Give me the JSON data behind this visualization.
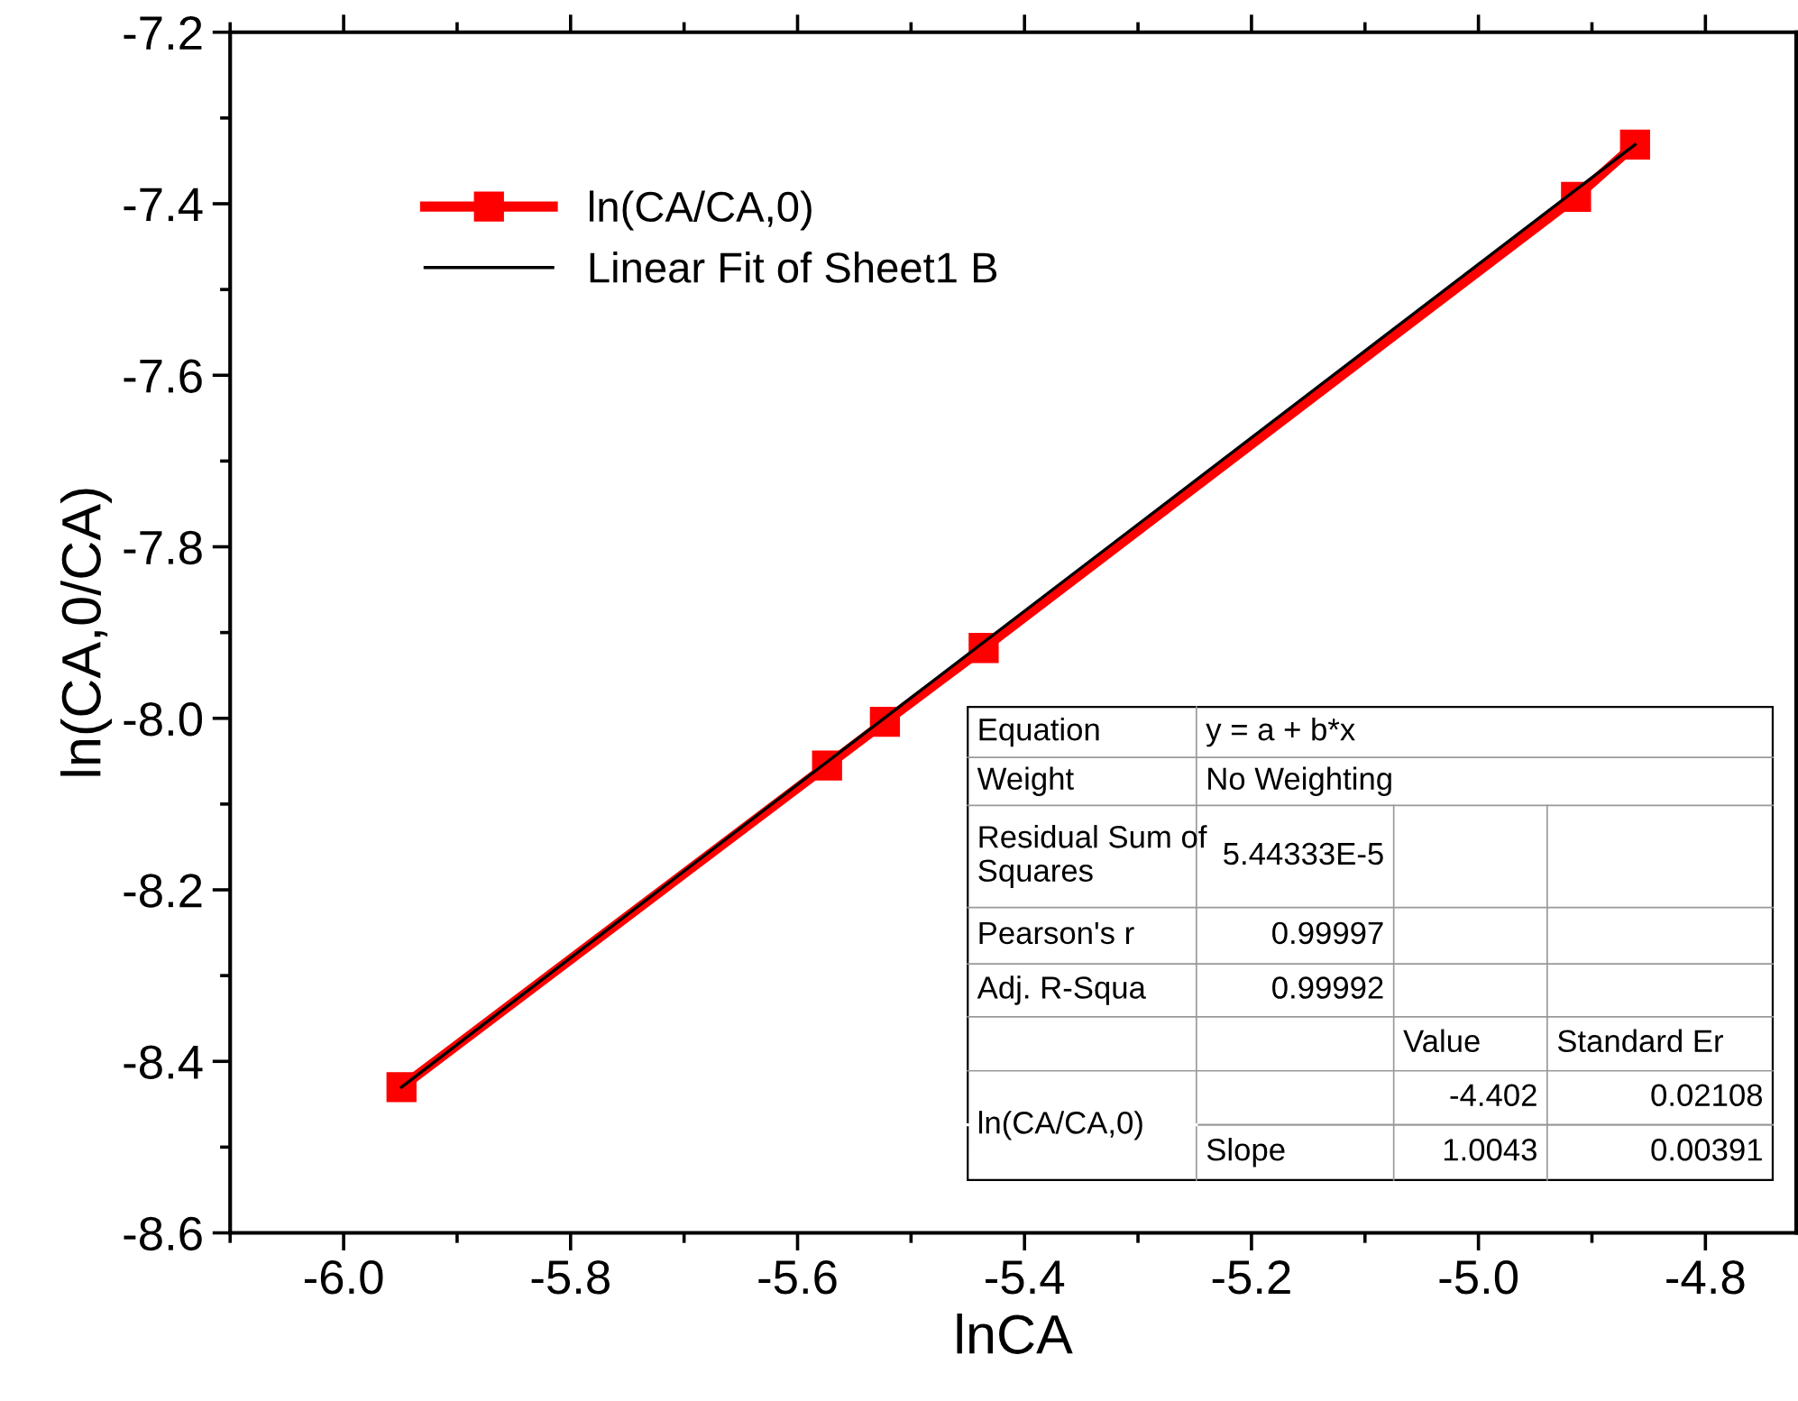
{
  "chart_data": {
    "type": "line",
    "xlabel": "lnCA",
    "ylabel": "ln(CA,0/CA)",
    "xlim": [
      -6.1,
      -4.72
    ],
    "ylim": [
      -8.6,
      -7.2
    ],
    "xticks": [
      {
        "value": -6.0,
        "label": "-6.0"
      },
      {
        "value": -5.8,
        "label": "-5.8"
      },
      {
        "value": -5.6,
        "label": "-5.6"
      },
      {
        "value": -5.4,
        "label": "-5.4"
      },
      {
        "value": -5.2,
        "label": "-5.2"
      },
      {
        "value": -5.0,
        "label": "-5.0"
      },
      {
        "value": -4.8,
        "label": "-4.8"
      }
    ],
    "yticks": [
      {
        "value": -8.6,
        "label": "-8.6"
      },
      {
        "value": -8.4,
        "label": "-8.4"
      },
      {
        "value": -8.2,
        "label": "-8.2"
      },
      {
        "value": -8.0,
        "label": "-8.0"
      },
      {
        "value": -7.8,
        "label": "-7.8"
      },
      {
        "value": -7.6,
        "label": "-7.6"
      },
      {
        "value": -7.4,
        "label": "-7.4"
      },
      {
        "value": -7.2,
        "label": "-7.2"
      }
    ],
    "grid": false,
    "legend": "top left",
    "line_style": "solid",
    "series": [
      {
        "name": "ln(CA/CA,0)",
        "color": "#ff0000",
        "marker": "square",
        "x": [
          -5.949,
          -5.574,
          -5.523,
          -5.436,
          -4.914,
          -4.862
        ],
        "values": [
          -8.43,
          -8.055,
          -8.004,
          -7.918,
          -7.392,
          -7.331
        ]
      },
      {
        "name": "Linear Fit of Sheet1 B",
        "color": "#000000",
        "marker": "none",
        "x": [
          -5.949,
          -4.862
        ],
        "values": [
          -8.43,
          -7.331
        ]
      }
    ],
    "annotations": [
      "Equation",
      "y = a + b*x",
      "Weight",
      "No Weighting",
      "Residual Sum of Squares",
      "5.44333E-5",
      "Pearson's r",
      "0.99997",
      "Adj. R-Squa",
      "0.99992",
      "Value",
      "Standard Er",
      "ln(CA/CA,0)",
      "-4.402",
      "0.02108",
      "Slope",
      "1.0043",
      "0.00391"
    ]
  }
}
